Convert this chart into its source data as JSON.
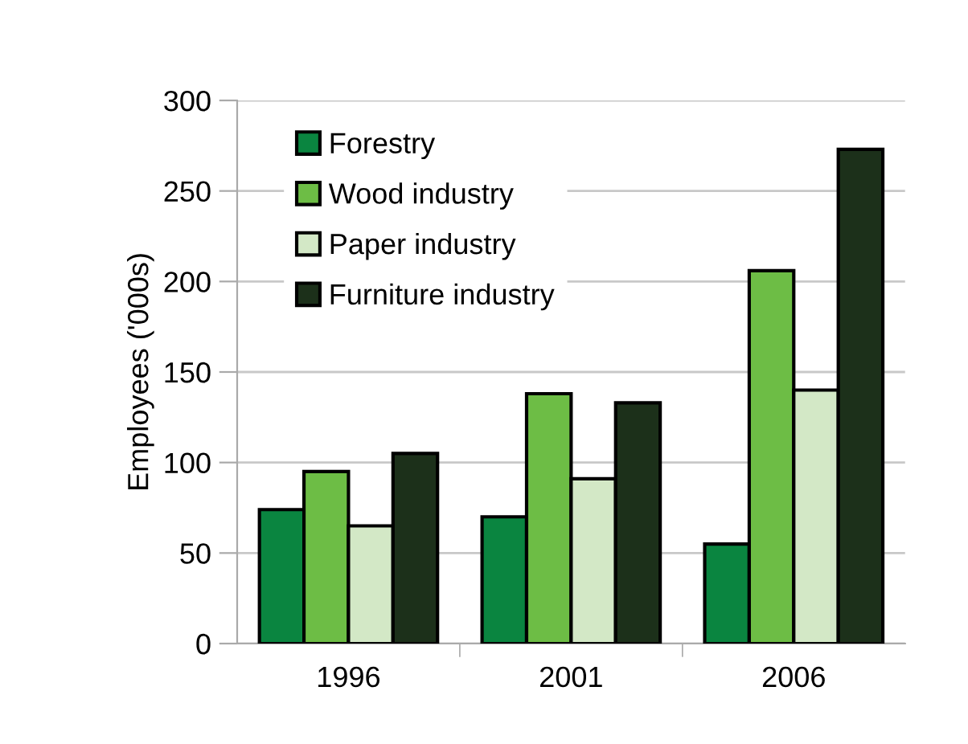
{
  "chart_data": {
    "type": "bar",
    "ylabel": "Employees ('000s)",
    "categories": [
      "1996",
      "2001",
      "2006"
    ],
    "series": [
      {
        "name": "Forestry",
        "color": "#0a8540",
        "values": [
          74,
          70,
          55
        ]
      },
      {
        "name": "Wood industry",
        "color": "#6dbd45",
        "values": [
          95,
          138,
          206
        ]
      },
      {
        "name": "Paper industry",
        "color": "#d3e8c6",
        "values": [
          65,
          91,
          140
        ]
      },
      {
        "name": "Furniture industry",
        "color": "#1c301a",
        "values": [
          105,
          133,
          273
        ]
      }
    ],
    "ylim": [
      0,
      300
    ],
    "yticks": [
      0,
      50,
      100,
      150,
      200,
      250,
      300
    ],
    "grid": "y",
    "legend": "top left"
  }
}
